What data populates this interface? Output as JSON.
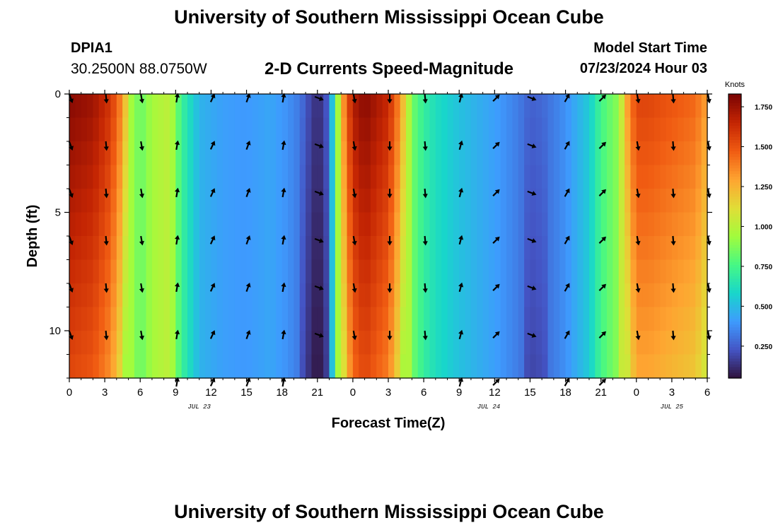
{
  "header": {
    "title": "University of Southern Mississippi Ocean Cube",
    "station_id": "DPIA1",
    "coordinates": "30.2500N  88.0750W",
    "subtitle": "2-D Currents Speed-Magnitude",
    "model_start_label": "Model Start Time",
    "model_start_value": "07/23/2024 Hour 03"
  },
  "footer": {
    "title": "University of Southern Mississippi Ocean Cube"
  },
  "colors": {
    "colormap": [
      "#30123b",
      "#4454c4",
      "#3e9bfe",
      "#18d6cb",
      "#46f884",
      "#a2fc3c",
      "#e1dd37",
      "#fea431",
      "#f05b12",
      "#c42503",
      "#7a0403"
    ]
  },
  "chart_data": {
    "type": "heatmap",
    "title": "2-D Currents Speed-Magnitude",
    "xlabel": "Forecast Time(Z)",
    "ylabel": "Depth (ft)",
    "x_tick_labels": [
      "0",
      "3",
      "6",
      "9",
      "12",
      "15",
      "18",
      "21",
      "0",
      "3",
      "6",
      "9",
      "12",
      "15",
      "18",
      "21",
      "0",
      "3",
      "6"
    ],
    "x_ticks_hours": [
      0,
      3,
      6,
      9,
      12,
      15,
      18,
      21,
      24,
      27,
      30,
      33,
      36,
      39,
      42,
      45,
      48,
      51,
      54
    ],
    "xlim_hours": [
      0,
      54
    ],
    "date_labels": [
      {
        "text": "JUL 23",
        "hour": 11
      },
      {
        "text": "JUL 24",
        "hour": 35.5
      },
      {
        "text": "JUL 25",
        "hour": 51
      }
    ],
    "y_tick_labels": [
      "0",
      "5",
      "10"
    ],
    "y_ticks": [
      0,
      5,
      10
    ],
    "ylim": [
      0,
      12
    ],
    "colorbar": {
      "label": "Knots",
      "range": [
        0.05,
        1.83
      ],
      "tick_labels": [
        "0.250",
        "0.500",
        "0.750",
        "1.000",
        "1.250",
        "1.500",
        "1.750"
      ],
      "ticks": [
        0.25,
        0.5,
        0.75,
        1.0,
        1.25,
        1.5,
        1.75
      ]
    },
    "speed_profile_hours": [
      0,
      2,
      3.5,
      4.5,
      5.2,
      6,
      7,
      8.5,
      9.5,
      10.3,
      11,
      13,
      15,
      17,
      18.5,
      19.5,
      20.3,
      21,
      21.7,
      22.3,
      22.8,
      23.3,
      24,
      25,
      27,
      28,
      29,
      30,
      31,
      33,
      36,
      38,
      39,
      40,
      42,
      44,
      45,
      46.5,
      47.2,
      48,
      49,
      51,
      53,
      54
    ],
    "speed_profile_knots": [
      1.8,
      1.75,
      1.6,
      1.35,
      0.95,
      0.82,
      0.95,
      1.02,
      0.72,
      0.6,
      0.48,
      0.42,
      0.4,
      0.44,
      0.38,
      0.32,
      0.2,
      0.12,
      0.2,
      0.55,
      1.0,
      1.4,
      1.7,
      1.8,
      1.65,
      1.35,
      0.85,
      0.7,
      0.62,
      0.52,
      0.42,
      0.33,
      0.26,
      0.28,
      0.38,
      0.55,
      0.75,
      0.9,
      1.3,
      1.55,
      1.55,
      1.5,
      1.45,
      1.3
    ],
    "arrow_hours": [
      0,
      3,
      6,
      9,
      12,
      15,
      18,
      21,
      24,
      27,
      30,
      33,
      36,
      39,
      42,
      45,
      48,
      51,
      54
    ],
    "arrow_depths_ft": [
      0,
      2,
      4,
      6,
      8,
      10,
      12
    ],
    "arrow_directions_deg": [
      160,
      175,
      170,
      10,
      25,
      20,
      10,
      110,
      170,
      180,
      175,
      15,
      45,
      110,
      30,
      45,
      170,
      175,
      170
    ]
  }
}
